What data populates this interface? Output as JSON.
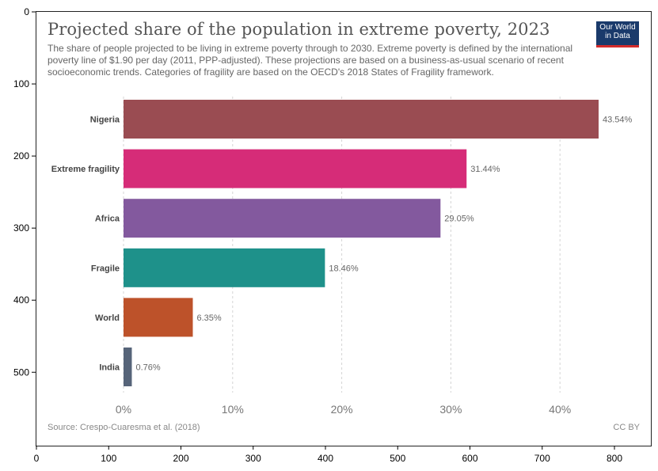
{
  "figure": {
    "title": "Projected share of the population in extreme poverty, 2023",
    "subtitle": "The share of people projected to be living in extreme poverty through to 2030. Extreme poverty is defined by the international poverty line of $1.90 per day (2011, PPP-adjusted). These projections are based on a business-as-usual scenario of recent socioeconomic trends. Categories of fragility are based on the OECD's 2018 States of Fragility framework.",
    "logo_line1": "Our World",
    "logo_line2": "in Data",
    "source": "Source: Crespo-Cuaresma et al. (2018)",
    "license": "CC BY"
  },
  "frame_axes": {
    "x_ticks": [
      "0",
      "100",
      "200",
      "300",
      "400",
      "500",
      "600",
      "700",
      "800"
    ],
    "y_ticks": [
      "0",
      "100",
      "200",
      "300",
      "400",
      "500"
    ]
  },
  "chart_data": {
    "type": "bar",
    "orientation": "horizontal",
    "categories": [
      "Nigeria",
      "Extreme fragility",
      "Africa",
      "Fragile",
      "World",
      "India"
    ],
    "values": [
      43.54,
      31.44,
      29.05,
      18.46,
      6.35,
      0.76
    ],
    "value_labels": [
      "43.54%",
      "31.44%",
      "29.05%",
      "18.46%",
      "6.35%",
      "0.76%"
    ],
    "colors": [
      "#9a4c52",
      "#d62c78",
      "#83599e",
      "#1e918a",
      "#bd522a",
      "#566479"
    ],
    "x_ticks": [
      "0%",
      "10%",
      "20%",
      "30%",
      "40%"
    ],
    "x_tick_values": [
      0,
      10,
      20,
      30,
      40
    ],
    "xlim": [
      0,
      45
    ],
    "grid": "vertical dashed",
    "xlabel": "",
    "ylabel": ""
  }
}
